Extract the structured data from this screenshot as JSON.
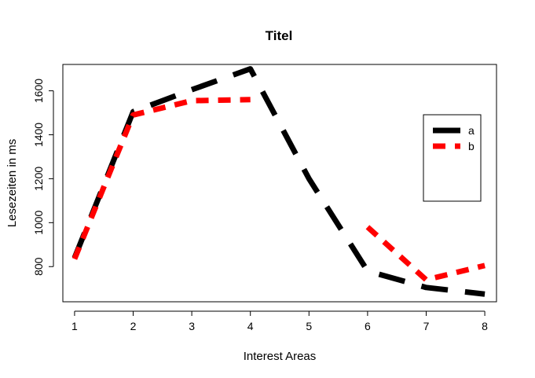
{
  "chart_data": {
    "type": "line",
    "title": "Titel",
    "xlabel": "Interest Areas",
    "ylabel": "Lesezeiten in ms",
    "x": [
      1,
      2,
      3,
      4,
      5,
      6,
      7,
      8
    ],
    "xlim": [
      0.8,
      8.2
    ],
    "ylim": [
      640,
      1720
    ],
    "xticks": [
      "1",
      "2",
      "3",
      "4",
      "5",
      "6",
      "7",
      "8"
    ],
    "yticks": [
      "800",
      "1000",
      "1200",
      "1400",
      "1600"
    ],
    "grid": false,
    "legend_position": "right",
    "series": [
      {
        "name": "a",
        "color": "#000000",
        "values": [
          840,
          1505,
          1605,
          1700,
          1200,
          780,
          705,
          675
        ]
      },
      {
        "name": "b",
        "color": "#ff0000",
        "values": [
          835,
          1490,
          1555,
          1560,
          null,
          980,
          740,
          805
        ]
      }
    ]
  }
}
